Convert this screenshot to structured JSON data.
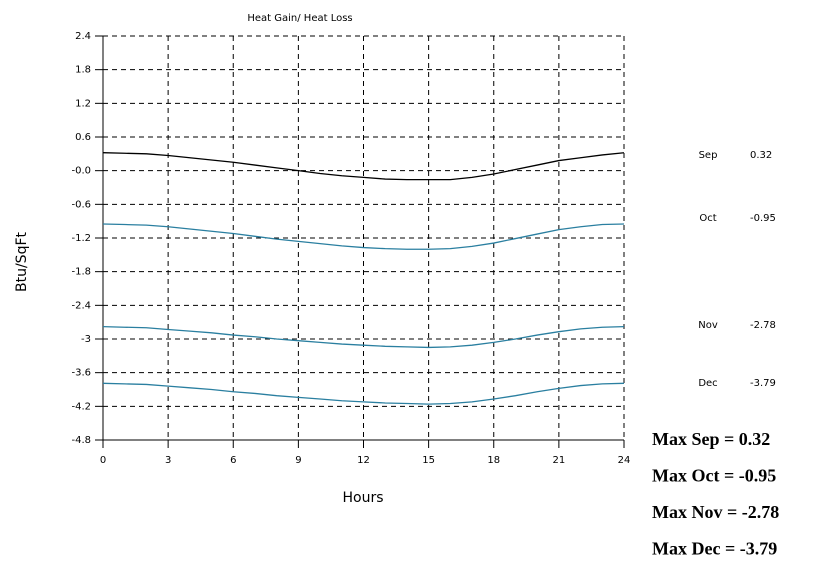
{
  "chart_data": {
    "type": "line",
    "title": "Heat Gain/ Heat Loss",
    "x_label": "Hours",
    "y_label": "Btu/SqFt",
    "x": [
      0,
      1,
      2,
      3,
      4,
      5,
      6,
      7,
      8,
      9,
      10,
      11,
      12,
      13,
      14,
      15,
      16,
      17,
      18,
      19,
      20,
      21,
      22,
      23,
      24
    ],
    "xlim": [
      0,
      24
    ],
    "xticks": [
      0,
      3,
      6,
      9,
      12,
      15,
      18,
      21,
      24
    ],
    "ylim": [
      -4.8,
      2.4
    ],
    "yticks": [
      2.4,
      1.8,
      1.2,
      0.6,
      {
        "value": 0,
        "label": "-0.0"
      },
      -0.6,
      -1.2,
      -1.8,
      -2.4,
      -3.0,
      -3.6,
      -4.2,
      -4.8
    ],
    "grid": true,
    "series": [
      {
        "name": "Sep",
        "color": "#000000",
        "values": [
          0.32,
          0.31,
          0.3,
          0.27,
          0.23,
          0.19,
          0.15,
          0.1,
          0.05,
          0.0,
          -0.05,
          -0.09,
          -0.12,
          -0.15,
          -0.16,
          -0.16,
          -0.16,
          -0.12,
          -0.06,
          0.02,
          0.1,
          0.18,
          0.23,
          0.28,
          0.32
        ]
      },
      {
        "name": "Oct",
        "color": "#2a7fa0",
        "values": [
          -0.95,
          -0.96,
          -0.97,
          -1.0,
          -1.04,
          -1.08,
          -1.12,
          -1.17,
          -1.22,
          -1.26,
          -1.3,
          -1.34,
          -1.37,
          -1.39,
          -1.4,
          -1.4,
          -1.39,
          -1.35,
          -1.29,
          -1.21,
          -1.13,
          -1.05,
          -1.0,
          -0.96,
          -0.95
        ]
      },
      {
        "name": "Nov",
        "color": "#2a7fa0",
        "values": [
          -2.78,
          -2.79,
          -2.8,
          -2.83,
          -2.86,
          -2.89,
          -2.93,
          -2.96,
          -3.0,
          -3.03,
          -3.06,
          -3.09,
          -3.11,
          -3.13,
          -3.14,
          -3.15,
          -3.14,
          -3.11,
          -3.06,
          -3.0,
          -2.93,
          -2.87,
          -2.82,
          -2.79,
          -2.78
        ]
      },
      {
        "name": "Dec",
        "color": "#2a7fa0",
        "values": [
          -3.79,
          -3.8,
          -3.81,
          -3.84,
          -3.87,
          -3.9,
          -3.94,
          -3.97,
          -4.01,
          -4.04,
          -4.07,
          -4.1,
          -4.12,
          -4.14,
          -4.15,
          -4.16,
          -4.15,
          -4.12,
          -4.07,
          -4.01,
          -3.94,
          -3.88,
          -3.83,
          -3.8,
          -3.79
        ]
      }
    ],
    "annotations": [
      "Max Sep = 0.32",
      "Max Oct = -0.95",
      "Max Nov = -2.78",
      "Max Dec = -3.79"
    ]
  }
}
